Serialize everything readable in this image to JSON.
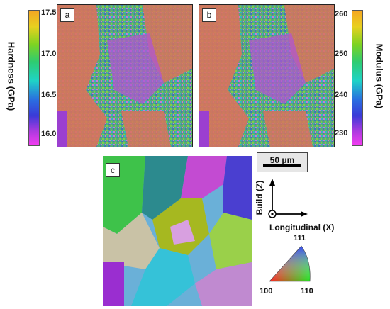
{
  "hardness_colorbar": {
    "title": "Hardness (GPa)",
    "ticks": [
      "17.5",
      "17.0",
      "16.5",
      "16.0"
    ]
  },
  "modulus_colorbar": {
    "title": "Modulus (GPa)",
    "ticks": [
      "260",
      "250",
      "240",
      "230"
    ]
  },
  "panels": {
    "a": "a",
    "b": "b",
    "c": "c"
  },
  "scale_bar": {
    "label": "50 μm"
  },
  "axes": {
    "build": "Build (Z)",
    "longitudinal": "Longitudinal (X)"
  },
  "ipf_triangle": {
    "top": "111",
    "left": "100",
    "right": "110"
  },
  "colors": {
    "orange_grain": "#d8735c",
    "green_noise": "#4fb868",
    "blue_noise": "#3a7ab8",
    "magenta_grain": "#b055d0"
  }
}
